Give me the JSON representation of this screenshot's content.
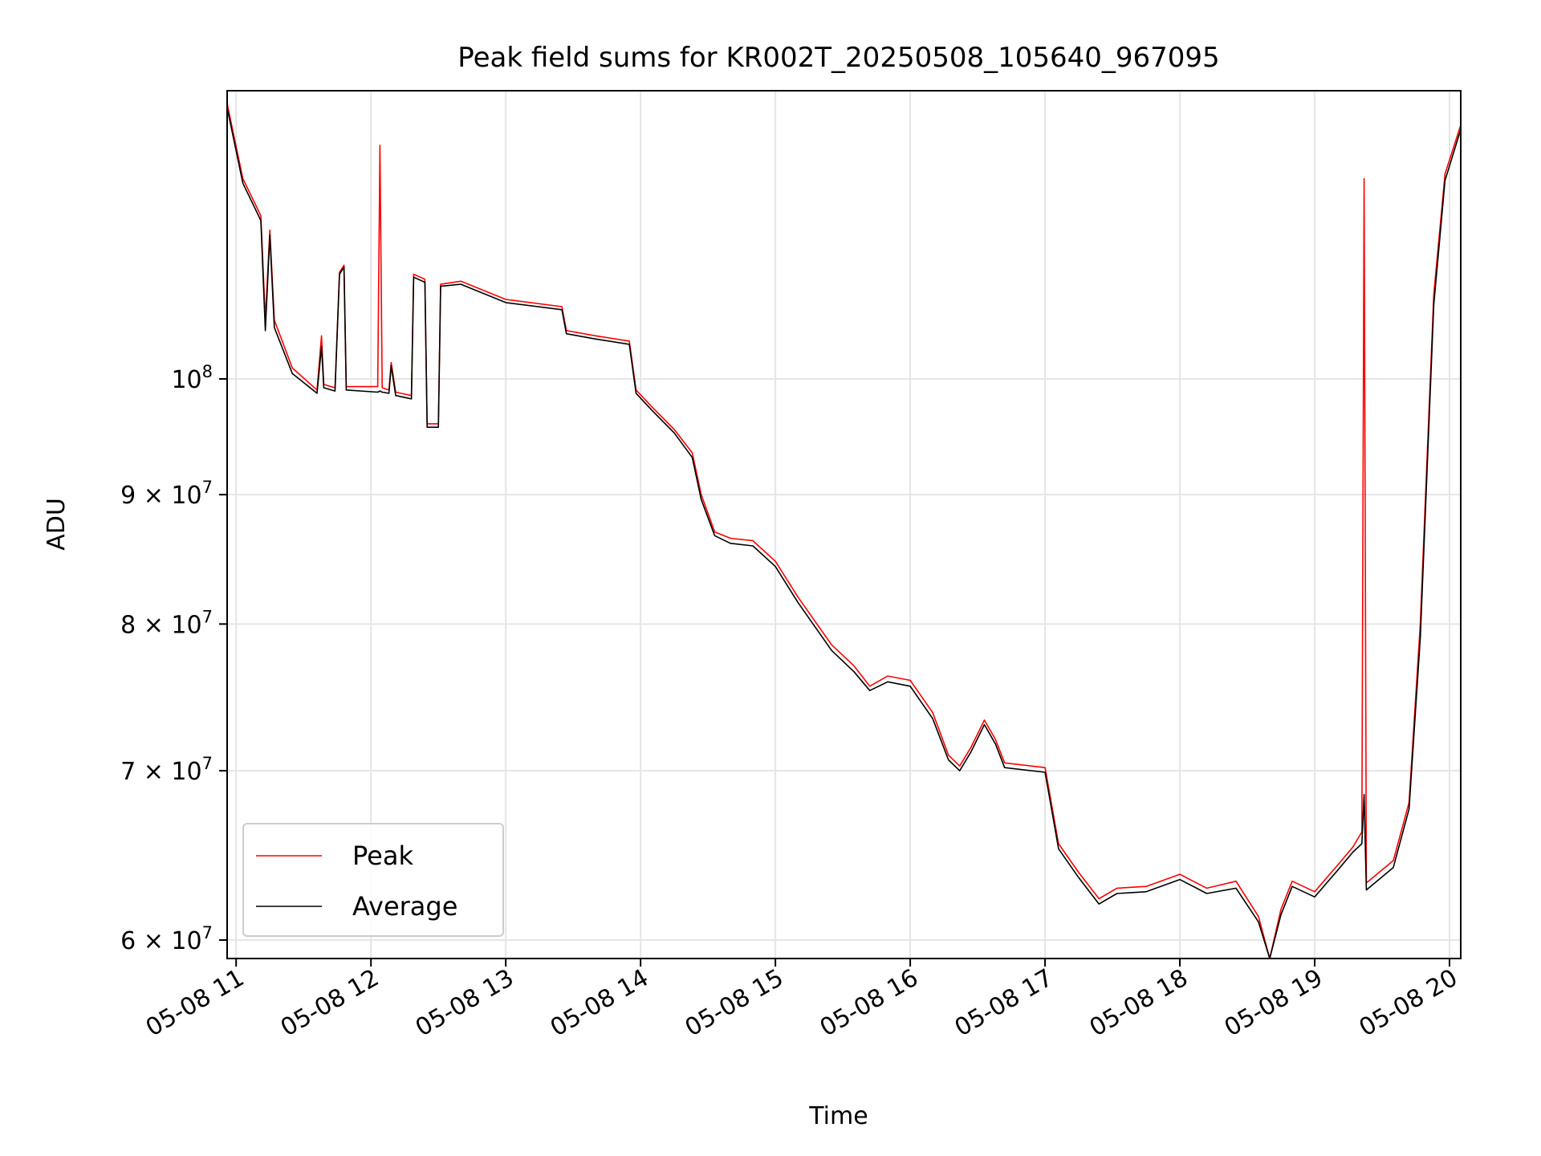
{
  "chart_data": {
    "type": "line",
    "title": "Peak field sums for KR002T_20250508_105640_967095",
    "xlabel": "Time",
    "ylabel": "ADU",
    "xlim": [
      "2025-05-08T10:56",
      "2025-05-08T20:05"
    ],
    "ylim": [
      59000000,
      130000000
    ],
    "yscale": "log",
    "grid": true,
    "legend_position": "lower-left",
    "x_ticks": [
      {
        "value": "2025-05-08T11:00",
        "label": "05-08 11"
      },
      {
        "value": "2025-05-08T12:00",
        "label": "05-08 12"
      },
      {
        "value": "2025-05-08T13:00",
        "label": "05-08 13"
      },
      {
        "value": "2025-05-08T14:00",
        "label": "05-08 14"
      },
      {
        "value": "2025-05-08T15:00",
        "label": "05-08 15"
      },
      {
        "value": "2025-05-08T16:00",
        "label": "05-08 16"
      },
      {
        "value": "2025-05-08T17:00",
        "label": "05-08 17"
      },
      {
        "value": "2025-05-08T18:00",
        "label": "05-08 18"
      },
      {
        "value": "2025-05-08T19:00",
        "label": "05-08 19"
      },
      {
        "value": "2025-05-08T20:00",
        "label": "05-08 20"
      }
    ],
    "y_ticks": [
      {
        "value": 60000000,
        "mantissa": "6",
        "label": "6 × 10^7"
      },
      {
        "value": 70000000,
        "mantissa": "7",
        "label": "7 × 10^7"
      },
      {
        "value": 80000000,
        "mantissa": "8",
        "label": "8 × 10^7"
      },
      {
        "value": 90000000,
        "mantissa": "9",
        "label": "9 × 10^7"
      },
      {
        "value": 100000000,
        "mantissa": "",
        "label": "10^8"
      }
    ],
    "series": [
      {
        "name": "Peak",
        "color": "#ff0000",
        "points": [
          [
            "2025-05-08T10:56",
            128500000
          ],
          [
            "2025-05-08T11:03",
            120000000
          ],
          [
            "2025-05-08T11:08",
            117500000
          ],
          [
            "2025-05-08T11:11",
            116000000
          ],
          [
            "2025-05-08T11:13",
            105500000
          ],
          [
            "2025-05-08T11:15",
            114500000
          ],
          [
            "2025-05-08T11:17",
            105500000
          ],
          [
            "2025-05-08T11:25",
            101000000
          ],
          [
            "2025-05-08T11:36",
            99000000
          ],
          [
            "2025-05-08T11:38",
            104000000
          ],
          [
            "2025-05-08T11:39",
            99500000
          ],
          [
            "2025-05-08T11:44",
            99200000
          ],
          [
            "2025-05-08T11:46",
            110200000
          ],
          [
            "2025-05-08T11:48",
            110900000
          ],
          [
            "2025-05-08T11:49",
            99300000
          ],
          [
            "2025-05-08T12:03",
            99300000
          ],
          [
            "2025-05-08T12:04",
            123700000
          ],
          [
            "2025-05-08T12:05",
            99200000
          ],
          [
            "2025-05-08T12:08",
            99000000
          ],
          [
            "2025-05-08T12:09",
            101500000
          ],
          [
            "2025-05-08T12:11",
            98800000
          ],
          [
            "2025-05-08T12:18",
            98500000
          ],
          [
            "2025-05-08T12:19",
            110000000
          ],
          [
            "2025-05-08T12:24",
            109500000
          ],
          [
            "2025-05-08T12:25",
            96000000
          ],
          [
            "2025-05-08T12:30",
            96000000
          ],
          [
            "2025-05-08T12:31",
            109000000
          ],
          [
            "2025-05-08T12:40",
            109300000
          ],
          [
            "2025-05-08T13:00",
            107500000
          ],
          [
            "2025-05-08T13:25",
            106800000
          ],
          [
            "2025-05-08T13:27",
            104500000
          ],
          [
            "2025-05-08T13:40",
            104000000
          ],
          [
            "2025-05-08T13:55",
            103500000
          ],
          [
            "2025-05-08T13:58",
            99000000
          ],
          [
            "2025-05-08T14:05",
            97500000
          ],
          [
            "2025-05-08T14:15",
            95500000
          ],
          [
            "2025-05-08T14:23",
            93500000
          ],
          [
            "2025-05-08T14:27",
            90000000
          ],
          [
            "2025-05-08T14:33",
            87000000
          ],
          [
            "2025-05-08T14:40",
            86500000
          ],
          [
            "2025-05-08T14:50",
            86300000
          ],
          [
            "2025-05-08T15:00",
            84700000
          ],
          [
            "2025-05-08T15:10",
            82000000
          ],
          [
            "2025-05-08T15:25",
            78500000
          ],
          [
            "2025-05-08T15:35",
            77000000
          ],
          [
            "2025-05-08T15:42",
            75600000
          ],
          [
            "2025-05-08T15:50",
            76300000
          ],
          [
            "2025-05-08T16:00",
            76000000
          ],
          [
            "2025-05-08T16:10",
            73800000
          ],
          [
            "2025-05-08T16:17",
            71000000
          ],
          [
            "2025-05-08T16:22",
            70300000
          ],
          [
            "2025-05-08T16:27",
            71500000
          ],
          [
            "2025-05-08T16:33",
            73300000
          ],
          [
            "2025-05-08T16:38",
            72000000
          ],
          [
            "2025-05-08T16:42",
            70500000
          ],
          [
            "2025-05-08T17:00",
            70200000
          ],
          [
            "2025-05-08T17:06",
            65500000
          ],
          [
            "2025-05-08T17:15",
            63800000
          ],
          [
            "2025-05-08T17:24",
            62300000
          ],
          [
            "2025-05-08T17:32",
            62900000
          ],
          [
            "2025-05-08T17:45",
            63000000
          ],
          [
            "2025-05-08T18:00",
            63700000
          ],
          [
            "2025-05-08T18:12",
            62900000
          ],
          [
            "2025-05-08T18:25",
            63300000
          ],
          [
            "2025-05-08T18:35",
            61300000
          ],
          [
            "2025-05-08T18:40",
            59000000
          ],
          [
            "2025-05-08T18:45",
            61700000
          ],
          [
            "2025-05-08T18:50",
            63300000
          ],
          [
            "2025-05-08T19:00",
            62700000
          ],
          [
            "2025-05-08T19:10",
            64200000
          ],
          [
            "2025-05-08T19:17",
            65300000
          ],
          [
            "2025-05-08T19:21",
            66200000
          ],
          [
            "2025-05-08T19:22",
            120000000
          ],
          [
            "2025-05-08T19:23",
            63200000
          ],
          [
            "2025-05-08T19:35",
            64500000
          ],
          [
            "2025-05-08T19:42",
            68000000
          ],
          [
            "2025-05-08T19:47",
            80000000
          ],
          [
            "2025-05-08T19:53",
            108000000
          ],
          [
            "2025-05-08T19:58",
            120500000
          ],
          [
            "2025-05-08T20:05",
            126000000
          ]
        ]
      },
      {
        "name": "Average",
        "color": "#000000",
        "points": [
          [
            "2025-05-08T10:56",
            128000000
          ],
          [
            "2025-05-08T11:03",
            119500000
          ],
          [
            "2025-05-08T11:08",
            117000000
          ],
          [
            "2025-05-08T11:11",
            115500000
          ],
          [
            "2025-05-08T11:13",
            104500000
          ],
          [
            "2025-05-08T11:15",
            114000000
          ],
          [
            "2025-05-08T11:17",
            104800000
          ],
          [
            "2025-05-08T11:25",
            100500000
          ],
          [
            "2025-05-08T11:36",
            98700000
          ],
          [
            "2025-05-08T11:38",
            103000000
          ],
          [
            "2025-05-08T11:39",
            99200000
          ],
          [
            "2025-05-08T11:44",
            98900000
          ],
          [
            "2025-05-08T11:46",
            110000000
          ],
          [
            "2025-05-08T11:48",
            110700000
          ],
          [
            "2025-05-08T11:49",
            99000000
          ],
          [
            "2025-05-08T12:03",
            98800000
          ],
          [
            "2025-05-08T12:04",
            98900000
          ],
          [
            "2025-05-08T12:05",
            98800000
          ],
          [
            "2025-05-08T12:08",
            98700000
          ],
          [
            "2025-05-08T12:09",
            101200000
          ],
          [
            "2025-05-08T12:11",
            98500000
          ],
          [
            "2025-05-08T12:18",
            98200000
          ],
          [
            "2025-05-08T12:19",
            109700000
          ],
          [
            "2025-05-08T12:24",
            109200000
          ],
          [
            "2025-05-08T12:25",
            95700000
          ],
          [
            "2025-05-08T12:30",
            95700000
          ],
          [
            "2025-05-08T12:31",
            108800000
          ],
          [
            "2025-05-08T12:40",
            109000000
          ],
          [
            "2025-05-08T13:00",
            107200000
          ],
          [
            "2025-05-08T13:25",
            106500000
          ],
          [
            "2025-05-08T13:27",
            104200000
          ],
          [
            "2025-05-08T13:40",
            103700000
          ],
          [
            "2025-05-08T13:55",
            103200000
          ],
          [
            "2025-05-08T13:58",
            98700000
          ],
          [
            "2025-05-08T14:05",
            97200000
          ],
          [
            "2025-05-08T14:15",
            95200000
          ],
          [
            "2025-05-08T14:23",
            93100000
          ],
          [
            "2025-05-08T14:27",
            89600000
          ],
          [
            "2025-05-08T14:33",
            86700000
          ],
          [
            "2025-05-08T14:40",
            86100000
          ],
          [
            "2025-05-08T14:50",
            85900000
          ],
          [
            "2025-05-08T15:00",
            84300000
          ],
          [
            "2025-05-08T15:10",
            81600000
          ],
          [
            "2025-05-08T15:25",
            78100000
          ],
          [
            "2025-05-08T15:35",
            76600000
          ],
          [
            "2025-05-08T15:42",
            75300000
          ],
          [
            "2025-05-08T15:50",
            75900000
          ],
          [
            "2025-05-08T16:00",
            75600000
          ],
          [
            "2025-05-08T16:10",
            73400000
          ],
          [
            "2025-05-08T16:17",
            70700000
          ],
          [
            "2025-05-08T16:22",
            70000000
          ],
          [
            "2025-05-08T16:27",
            71200000
          ],
          [
            "2025-05-08T16:33",
            73000000
          ],
          [
            "2025-05-08T16:38",
            71700000
          ],
          [
            "2025-05-08T16:42",
            70200000
          ],
          [
            "2025-05-08T17:00",
            69900000
          ],
          [
            "2025-05-08T17:06",
            65200000
          ],
          [
            "2025-05-08T17:15",
            63500000
          ],
          [
            "2025-05-08T17:24",
            62000000
          ],
          [
            "2025-05-08T17:32",
            62600000
          ],
          [
            "2025-05-08T17:45",
            62700000
          ],
          [
            "2025-05-08T18:00",
            63400000
          ],
          [
            "2025-05-08T18:12",
            62600000
          ],
          [
            "2025-05-08T18:25",
            62900000
          ],
          [
            "2025-05-08T18:35",
            61000000
          ],
          [
            "2025-05-08T18:40",
            59000000
          ],
          [
            "2025-05-08T18:45",
            61400000
          ],
          [
            "2025-05-08T18:50",
            63000000
          ],
          [
            "2025-05-08T19:00",
            62400000
          ],
          [
            "2025-05-08T19:10",
            63900000
          ],
          [
            "2025-05-08T19:17",
            65000000
          ],
          [
            "2025-05-08T19:21",
            65500000
          ],
          [
            "2025-05-08T19:22",
            68500000
          ],
          [
            "2025-05-08T19:23",
            62800000
          ],
          [
            "2025-05-08T19:35",
            64100000
          ],
          [
            "2025-05-08T19:42",
            67600000
          ],
          [
            "2025-05-08T19:47",
            79000000
          ],
          [
            "2025-05-08T19:53",
            107000000
          ],
          [
            "2025-05-08T19:58",
            119800000
          ],
          [
            "2025-05-08T20:05",
            125500000
          ]
        ]
      }
    ]
  }
}
